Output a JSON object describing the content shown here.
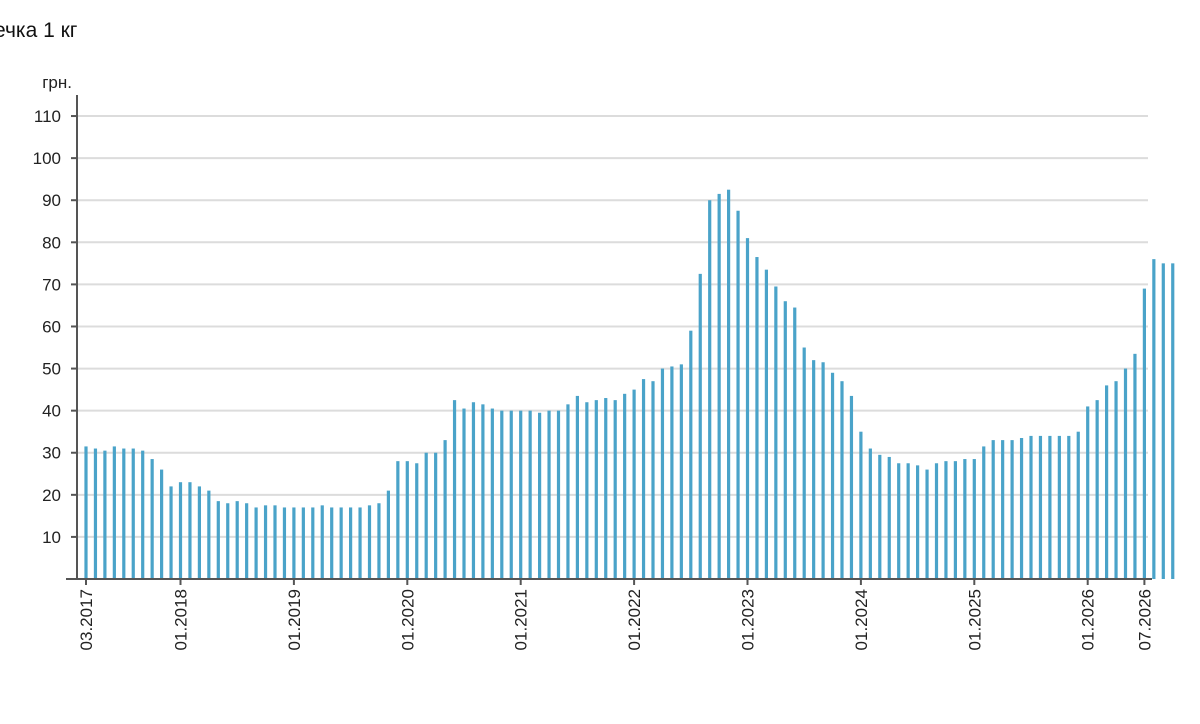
{
  "chart_data": {
    "type": "bar",
    "title": "ечка 1 кг",
    "ylabel": "грн.",
    "xlabel": "",
    "ylim": [
      0,
      115
    ],
    "yticks": [
      10,
      20,
      30,
      40,
      50,
      60,
      70,
      80,
      90,
      100,
      110
    ],
    "grid": true,
    "colors": {
      "bar": "#4aa3c9",
      "grid": "#dcdcdc",
      "axis": "#555555"
    },
    "x_tick_labels": [
      {
        "label": "03.2017",
        "index": 0
      },
      {
        "label": "01.2018",
        "index": 10
      },
      {
        "label": "01.2019",
        "index": 22
      },
      {
        "label": "01.2020",
        "index": 34
      },
      {
        "label": "01.2021",
        "index": 46
      },
      {
        "label": "01.2022",
        "index": 58
      },
      {
        "label": "01.2023",
        "index": 70
      },
      {
        "label": "01.2024",
        "index": 82
      },
      {
        "label": "01.2025",
        "index": 94
      },
      {
        "label": "01.2026",
        "index": 106
      },
      {
        "label": "07.2026",
        "index": 112
      }
    ],
    "start_period": "03.2017",
    "values": [
      31.5,
      31.0,
      30.5,
      31.5,
      31.0,
      31.0,
      30.5,
      28.5,
      26.0,
      22.0,
      23.0,
      23.0,
      22.0,
      21.0,
      18.5,
      18.0,
      18.5,
      18.0,
      17.0,
      17.5,
      17.5,
      17.0,
      17.0,
      17.0,
      17.0,
      17.5,
      17.0,
      17.0,
      17.0,
      17.0,
      17.5,
      18.0,
      21.0,
      28.0,
      28.0,
      27.5,
      30.0,
      30.0,
      33.0,
      42.5,
      40.5,
      42.0,
      41.5,
      40.5,
      40.0,
      40.0,
      40.0,
      40.0,
      39.5,
      40.0,
      40.0,
      41.5,
      43.5,
      42.0,
      42.5,
      43.0,
      42.5,
      44.0,
      45.0,
      47.5,
      47.0,
      50.0,
      50.5,
      51.0,
      59.0,
      72.5,
      90.0,
      91.5,
      92.5,
      87.5,
      81.0,
      76.5,
      73.5,
      69.5,
      66.0,
      64.5,
      55.0,
      52.0,
      51.5,
      49.0,
      47.0,
      43.5,
      35.0,
      31.0,
      29.5,
      29.0,
      27.5,
      27.5,
      27.0,
      26.0,
      27.5,
      28.0,
      28.0,
      28.5,
      28.5,
      31.5,
      33.0,
      33.0,
      33.0,
      33.5,
      34.0,
      34.0,
      34.0,
      34.0,
      34.0,
      35.0,
      41.0,
      42.5,
      46.0,
      47.0,
      50.0,
      53.5,
      69.0,
      76.0,
      75.0,
      75.0
    ]
  }
}
